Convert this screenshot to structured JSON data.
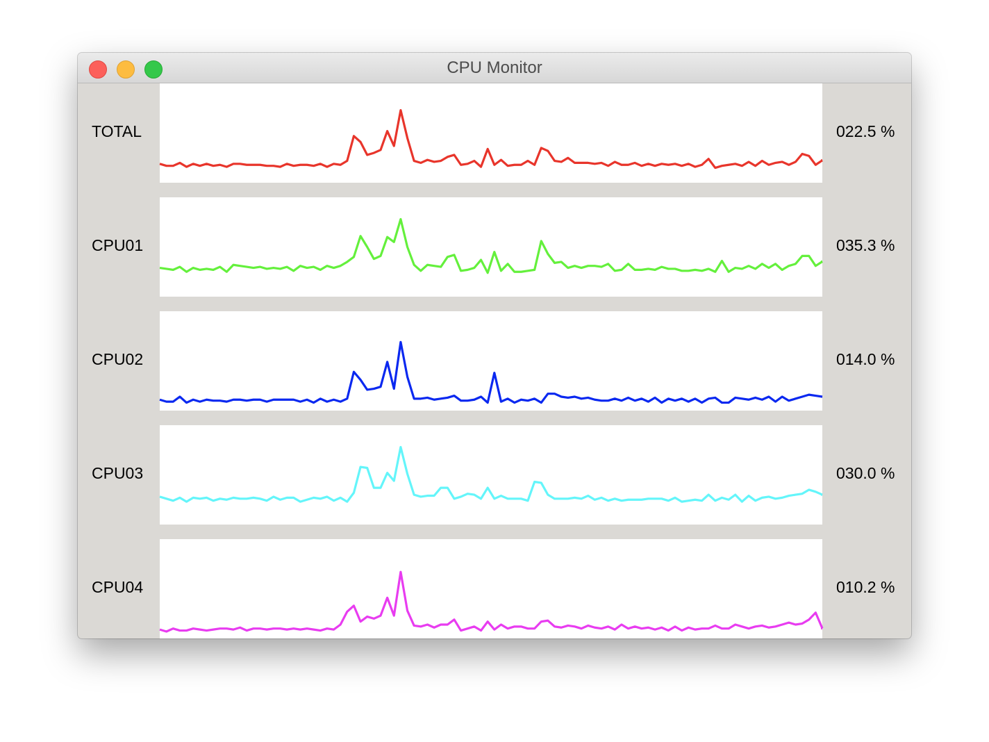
{
  "window": {
    "title": "CPU Monitor"
  },
  "chart_data": [
    {
      "type": "line",
      "name": "TOTAL",
      "color": "#e8352b",
      "ylim": [
        0,
        100
      ],
      "current": {
        "value": 22.5,
        "label": "022.5 %"
      },
      "values": [
        19,
        17,
        17,
        20,
        16,
        19,
        17,
        19,
        17,
        18,
        16,
        19,
        19,
        18,
        18,
        18,
        17,
        17,
        16,
        19,
        17,
        18,
        18,
        17,
        19,
        16,
        19,
        18,
        22,
        47,
        41,
        28,
        30,
        33,
        52,
        37,
        73,
        45,
        22,
        20,
        23,
        21,
        22,
        26,
        28,
        18,
        19,
        22,
        16,
        34,
        18,
        23,
        17,
        18,
        18,
        22,
        18,
        35,
        32,
        22,
        21,
        25,
        20,
        20,
        20,
        19,
        20,
        17,
        21,
        18,
        18,
        20,
        17,
        19,
        17,
        19,
        18,
        19,
        17,
        19,
        16,
        18,
        24,
        15,
        17,
        18,
        19,
        17,
        21,
        17,
        22,
        18,
        20,
        21,
        18,
        21,
        29,
        27,
        18,
        22.5
      ]
    },
    {
      "type": "line",
      "name": "CPU01",
      "color": "#64f03c",
      "ylim": [
        0,
        100
      ],
      "current": {
        "value": 35.3,
        "label": "035.3 %"
      },
      "values": [
        29,
        28,
        27,
        30,
        25,
        29,
        27,
        28,
        27,
        30,
        25,
        32,
        31,
        30,
        29,
        30,
        28,
        29,
        28,
        30,
        26,
        31,
        29,
        30,
        27,
        31,
        29,
        31,
        35,
        40,
        61,
        50,
        38,
        41,
        60,
        55,
        78,
        50,
        32,
        26,
        32,
        31,
        30,
        40,
        42,
        26,
        27,
        29,
        37,
        24,
        45,
        26,
        33,
        25,
        25,
        26,
        27,
        56,
        43,
        34,
        35,
        29,
        31,
        29,
        31,
        31,
        30,
        33,
        26,
        27,
        33,
        27,
        27,
        28,
        27,
        30,
        28,
        28,
        26,
        26,
        27,
        26,
        28,
        25,
        36,
        25,
        29,
        28,
        31,
        28,
        33,
        29,
        33,
        27,
        31,
        33,
        41,
        41,
        31,
        35.3
      ]
    },
    {
      "type": "line",
      "name": "CPU02",
      "color": "#0a28f0",
      "ylim": [
        0,
        100
      ],
      "current": {
        "value": 14.0,
        "label": "014.0 %"
      },
      "values": [
        11,
        9,
        9,
        14,
        8,
        11,
        9,
        11,
        10,
        10,
        9,
        11,
        11,
        10,
        11,
        11,
        9,
        11,
        11,
        11,
        11,
        9,
        11,
        8,
        12,
        9,
        11,
        9,
        12,
        39,
        31,
        21,
        22,
        24,
        49,
        22,
        69,
        34,
        12,
        12,
        13,
        11,
        12,
        13,
        15,
        10,
        10,
        11,
        14,
        8,
        38,
        9,
        12,
        8,
        11,
        10,
        12,
        8,
        17,
        17,
        14,
        13,
        14,
        12,
        13,
        11,
        10,
        10,
        12,
        10,
        13,
        10,
        12,
        9,
        13,
        8,
        12,
        10,
        12,
        9,
        12,
        8,
        12,
        13,
        8,
        8,
        13,
        12,
        11,
        13,
        11,
        14,
        9,
        14,
        10,
        12,
        14,
        16,
        15,
        14.0
      ]
    },
    {
      "type": "line",
      "name": "CPU03",
      "color": "#64f5fa",
      "ylim": [
        0,
        100
      ],
      "current": {
        "value": 30.0,
        "label": "030.0 %"
      },
      "values": [
        28,
        26,
        24,
        27,
        23,
        27,
        26,
        27,
        24,
        26,
        25,
        27,
        26,
        26,
        27,
        26,
        24,
        28,
        25,
        27,
        27,
        23,
        25,
        27,
        26,
        28,
        24,
        27,
        23,
        32,
        58,
        57,
        37,
        37,
        52,
        44,
        78,
        51,
        30,
        28,
        29,
        29,
        37,
        37,
        26,
        28,
        31,
        30,
        26,
        37,
        26,
        29,
        26,
        26,
        26,
        24,
        43,
        42,
        30,
        26,
        26,
        26,
        27,
        26,
        29,
        25,
        27,
        24,
        26,
        24,
        25,
        25,
        25,
        26,
        26,
        26,
        24,
        27,
        23,
        24,
        25,
        24,
        30,
        24,
        27,
        25,
        30,
        23,
        29,
        24,
        27,
        28,
        26,
        27,
        29,
        30,
        31,
        35,
        33,
        30.0
      ]
    },
    {
      "type": "line",
      "name": "CPU04",
      "color": "#e83cf0",
      "ylim": [
        0,
        100
      ],
      "current": {
        "value": 10.2,
        "label": "010.2 %"
      },
      "values": [
        9,
        7,
        10,
        8,
        8,
        10,
        9,
        8,
        9,
        10,
        10,
        9,
        11,
        8,
        10,
        10,
        9,
        10,
        10,
        9,
        10,
        9,
        10,
        9,
        8,
        10,
        9,
        14,
        27,
        33,
        17,
        22,
        20,
        23,
        41,
        23,
        67,
        28,
        13,
        12,
        14,
        11,
        14,
        14,
        19,
        8,
        10,
        12,
        8,
        17,
        9,
        14,
        10,
        12,
        12,
        10,
        10,
        17,
        18,
        12,
        11,
        13,
        12,
        10,
        13,
        11,
        10,
        12,
        9,
        14,
        10,
        12,
        10,
        11,
        9,
        11,
        8,
        12,
        8,
        11,
        9,
        10,
        10,
        13,
        10,
        10,
        14,
        12,
        10,
        12,
        13,
        11,
        12,
        14,
        16,
        14,
        15,
        19,
        26,
        10.2
      ]
    }
  ]
}
